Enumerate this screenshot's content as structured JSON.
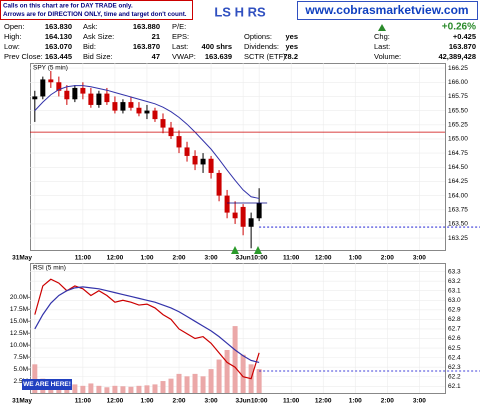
{
  "header": {
    "note": [
      "Calls on this chart are for DAY TRADE only.",
      "Arrows are for DIRECTION ONLY, time and target don't count."
    ],
    "symbol": "LS H RS",
    "url": "www.cobrasmarketview.com",
    "change_pct": "+0.26%",
    "quote": [
      [
        {
          "label": "Open:",
          "value": "163.830"
        },
        {
          "label": "Ask:",
          "value": "163.880"
        },
        {
          "label": "P/E:"
        }
      ],
      [
        {
          "label": "High:",
          "value": "164.130"
        },
        {
          "label": "Ask Size:",
          "value": "21"
        },
        {
          "label": "EPS:"
        },
        {
          "label": "Options:",
          "value": "yes"
        },
        {
          "label": "Chg:",
          "value": "+0.425"
        }
      ],
      [
        {
          "label": "Low:",
          "value": "163.070"
        },
        {
          "label": "Bid:",
          "value": "163.870"
        },
        {
          "label": "Last:",
          "value": "400 shrs"
        },
        {
          "label": "Dividends:",
          "value": "yes"
        },
        {
          "label": "Last:",
          "value": "163.870"
        }
      ],
      [
        {
          "label": "Prev Close:",
          "value": "163.445"
        },
        {
          "label": "Bid Size:",
          "value": "47"
        },
        {
          "label": "VWAP:",
          "value": "163.639"
        },
        {
          "label": "SCTR (ETF):",
          "value": "78.2"
        },
        {
          "label": "Volume:",
          "value": "42,389,428"
        }
      ]
    ]
  },
  "chart_data": [
    {
      "type": "candlestick",
      "label": "SPY (5 min)",
      "x": [
        0,
        1,
        2,
        3,
        4,
        5,
        6,
        7,
        8,
        9,
        10,
        11,
        12,
        13,
        14,
        15,
        16,
        17,
        18,
        19,
        20,
        21,
        22,
        23,
        24,
        25,
        26,
        27,
        28
      ],
      "open": [
        165.7,
        165.75,
        166.05,
        166.0,
        165.85,
        165.7,
        165.9,
        165.8,
        165.6,
        165.8,
        165.65,
        165.5,
        165.65,
        165.55,
        165.45,
        165.5,
        165.35,
        165.2,
        165.05,
        164.85,
        164.7,
        164.55,
        164.65,
        164.4,
        164.0,
        163.7,
        163.8,
        163.45,
        163.6
      ],
      "high": [
        165.85,
        166.1,
        166.2,
        166.1,
        165.95,
        165.95,
        166.0,
        165.9,
        165.85,
        165.9,
        165.75,
        165.7,
        165.75,
        165.65,
        165.6,
        165.55,
        165.45,
        165.3,
        165.15,
        164.95,
        164.8,
        164.75,
        164.7,
        164.45,
        164.1,
        163.9,
        163.85,
        163.7,
        164.13
      ],
      "low": [
        165.3,
        165.7,
        165.9,
        165.75,
        165.6,
        165.65,
        165.7,
        165.55,
        165.55,
        165.6,
        165.45,
        165.45,
        165.5,
        165.4,
        165.35,
        165.3,
        165.1,
        165.0,
        164.75,
        164.6,
        164.45,
        164.4,
        164.3,
        163.9,
        163.6,
        163.5,
        163.3,
        163.07,
        163.55
      ],
      "close": [
        165.75,
        166.05,
        166.0,
        165.85,
        165.7,
        165.9,
        165.8,
        165.6,
        165.8,
        165.65,
        165.5,
        165.65,
        165.55,
        165.45,
        165.5,
        165.35,
        165.2,
        165.05,
        164.85,
        164.7,
        164.55,
        164.65,
        164.4,
        164.0,
        163.7,
        163.6,
        163.45,
        163.6,
        163.87
      ],
      "up_color": "#000000",
      "down_color": "#cc0000",
      "series": [
        {
          "color": "#3333aa",
          "values": [
            165.5,
            165.65,
            165.78,
            165.87,
            165.92,
            165.94,
            165.94,
            165.92,
            165.89,
            165.86,
            165.82,
            165.78,
            165.74,
            165.7,
            165.66,
            165.62,
            165.56,
            165.48,
            165.38,
            165.26,
            165.12,
            164.97,
            164.82,
            164.64,
            164.45,
            164.27,
            164.1,
            163.98,
            163.95
          ]
        }
      ],
      "hlines": [
        {
          "value": 165.12,
          "color": "#cc0000",
          "style": "full"
        },
        {
          "value": 163.87,
          "color": "#000080",
          "style": "marker"
        },
        {
          "value": 163.445,
          "color": "#0000cc",
          "style": "dashed"
        }
      ],
      "xlim": [
        -0.6,
        51.2
      ],
      "ylim": [
        163.04,
        166.34
      ],
      "xticks": [
        {
          "value": 0,
          "label": "31May"
        },
        {
          "value": 6,
          "label": "11:00"
        },
        {
          "value": 10,
          "label": "12:00"
        },
        {
          "value": 14,
          "label": "1:00"
        },
        {
          "value": 18,
          "label": "2:00"
        },
        {
          "value": 22,
          "label": "3:00"
        },
        {
          "value": 26,
          "label": "3Jun"
        },
        {
          "value": 28,
          "label": "10:00"
        },
        {
          "value": 32,
          "label": "11:00"
        },
        {
          "value": 36,
          "label": "12:00"
        },
        {
          "value": 40,
          "label": "1:00"
        },
        {
          "value": 44,
          "label": "2:00"
        },
        {
          "value": 48,
          "label": "3:00"
        }
      ],
      "yticks": [
        163.25,
        {
          "value": 163.5,
          "label": "163.50"
        },
        163.75,
        {
          "value": 164,
          "label": "164.00"
        },
        164.25,
        {
          "value": 164.5,
          "label": "164.50"
        },
        164.75,
        {
          "value": 165,
          "label": "165.00"
        },
        165.25,
        {
          "value": 165.5,
          "label": "165.50"
        },
        165.75,
        {
          "value": 166,
          "label": "166.00"
        },
        166.25
      ],
      "grid": true
    },
    {
      "type": "volume-line",
      "label": "RSI (5 min)",
      "annotation": "WE ARE HERE!",
      "x": [
        0,
        1,
        2,
        3,
        4,
        5,
        6,
        7,
        8,
        9,
        10,
        11,
        12,
        13,
        14,
        15,
        16,
        17,
        18,
        19,
        20,
        21,
        22,
        23,
        24,
        25,
        26,
        27,
        28
      ],
      "values": [
        6,
        3,
        2.5,
        2,
        2,
        1.8,
        1.5,
        2,
        1.5,
        1.2,
        1.5,
        1.4,
        1.3,
        1.5,
        1.6,
        1.8,
        2.5,
        3,
        4,
        3.5,
        4,
        3.5,
        5,
        7,
        9,
        14,
        8,
        6,
        5
      ],
      "color": "#eba8a8",
      "series": [
        {
          "color": "#cc0000",
          "axis": "y2",
          "values": [
            62.85,
            63.15,
            63.22,
            63.18,
            63.1,
            63.15,
            63.12,
            63.05,
            63.1,
            63.05,
            62.98,
            63.0,
            62.98,
            62.95,
            62.96,
            62.92,
            62.85,
            62.8,
            62.7,
            62.65,
            62.6,
            62.62,
            62.55,
            62.45,
            62.35,
            62.3,
            62.2,
            62.18,
            62.45
          ]
        },
        {
          "color": "#3333aa",
          "axis": "y2",
          "values": [
            62.7,
            62.85,
            62.97,
            63.05,
            63.1,
            63.13,
            63.14,
            63.13,
            63.12,
            63.1,
            63.08,
            63.06,
            63.04,
            63.02,
            63.0,
            62.98,
            62.95,
            62.92,
            62.88,
            62.83,
            62.78,
            62.73,
            62.68,
            62.62,
            62.55,
            62.48,
            62.42,
            62.37,
            62.35
          ]
        }
      ],
      "hlines": [
        {
          "value": 62.26,
          "color": "#0000cc",
          "style": "dashed",
          "axis": "y2"
        }
      ],
      "xlim": [
        -0.6,
        51.2
      ],
      "ylim": [
        0,
        27.2
      ],
      "y2lim": [
        62.03,
        63.39
      ],
      "xticks": [
        {
          "value": 0,
          "label": "31May"
        },
        {
          "value": 6,
          "label": "11:00"
        },
        {
          "value": 10,
          "label": "12:00"
        },
        {
          "value": 14,
          "label": "1:00"
        },
        {
          "value": 18,
          "label": "2:00"
        },
        {
          "value": 22,
          "label": "3:00"
        },
        {
          "value": 26,
          "label": "3Jun"
        },
        {
          "value": 28,
          "label": "10:00"
        },
        {
          "value": 32,
          "label": "11:00"
        },
        {
          "value": 36,
          "label": "12:00"
        },
        {
          "value": 40,
          "label": "1:00"
        },
        {
          "value": 44,
          "label": "2:00"
        },
        {
          "value": 48,
          "label": "3:00"
        }
      ],
      "yticks": [
        {
          "value": 2.5,
          "label": "2.5M"
        },
        {
          "value": 5,
          "label": "5.0M"
        },
        {
          "value": 7.5,
          "label": "7.5M"
        },
        {
          "value": 10,
          "label": "10.0M"
        },
        {
          "value": 12.5,
          "label": "12.5M"
        },
        {
          "value": 15,
          "label": "15.0M"
        },
        {
          "value": 17.5,
          "label": "17.5M"
        },
        {
          "value": 20,
          "label": "20.0M"
        }
      ],
      "y2ticks": [
        62.1,
        62.2,
        62.3,
        62.4,
        62.5,
        62.6,
        62.7,
        62.8,
        62.9,
        {
          "value": 63,
          "label": "63.0"
        },
        63.1,
        63.2,
        63.3
      ],
      "grid": true
    }
  ]
}
